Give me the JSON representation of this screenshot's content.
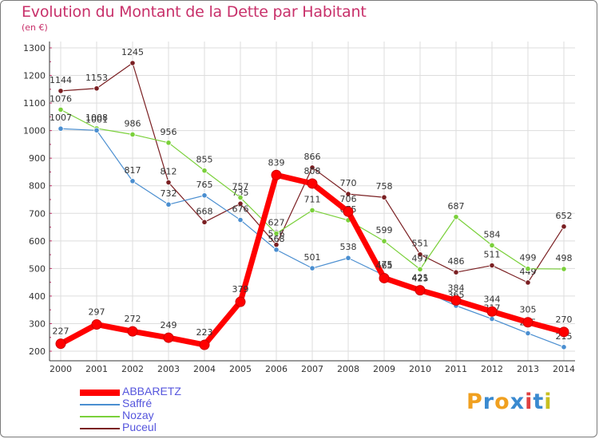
{
  "header": {
    "title": "Evolution du Montant de la Dette par Habitant",
    "unit": "(en €)"
  },
  "brand": {
    "text": "Proxiti",
    "letter_colors": [
      "#f0a020",
      "#3a8ad0",
      "#f0a020",
      "#3a8ad0",
      "#e04040",
      "#3a8ad0",
      "#c8c020"
    ]
  },
  "chart_data": {
    "type": "line",
    "title": "Evolution du Montant de la Dette par Habitant",
    "ylabel": "(en €)",
    "xlabel": "",
    "x": [
      "2000",
      "2001",
      "2002",
      "2003",
      "2004",
      "2005",
      "2006",
      "2007",
      "2008",
      "2009",
      "2010",
      "2011",
      "2012",
      "2013",
      "2014"
    ],
    "ylim": [
      200,
      1300
    ],
    "yticks": [
      "200",
      "300",
      "400",
      "500",
      "600",
      "700",
      "800",
      "900",
      "1000",
      "1100",
      "1200",
      "1300"
    ],
    "grid": true,
    "legend_position": "bottom-left",
    "series": [
      {
        "name": "Puceul",
        "color": "#7a1f22",
        "values": [
          1144,
          1153,
          1245,
          812,
          668,
          735,
          586,
          866,
          770,
          758,
          551,
          486,
          511,
          449,
          652
        ],
        "labels": [
          "1144",
          "1153",
          "1245",
          "812",
          "668",
          "735",
          "586",
          "866",
          "770",
          "758",
          "551",
          "486",
          "511",
          "449",
          "652"
        ]
      },
      {
        "name": "Nozay",
        "color": "#7ad03a",
        "values": [
          1076,
          1008,
          986,
          956,
          855,
          757,
          627,
          711,
          675,
          599,
          497,
          687,
          584,
          499,
          498
        ],
        "labels": [
          "1076",
          "1008",
          "986",
          "956",
          "855",
          "757",
          "627",
          "711",
          "675",
          "599",
          "497",
          "687",
          "584",
          "499",
          "498"
        ]
      },
      {
        "name": "Saffré",
        "color": "#4a8ed0",
        "values": [
          1007,
          1001,
          817,
          732,
          765,
          676,
          568,
          501,
          538,
          475,
          425,
          365,
          317,
          265,
          215
        ],
        "labels": [
          "1007",
          "1001",
          "817",
          "732",
          "765",
          "676",
          "568",
          "501",
          "538",
          "475",
          "425",
          "365",
          "317",
          "265",
          "215"
        ]
      },
      {
        "name": "ABBARETZ",
        "color": "#ff0000",
        "values": [
          227,
          297,
          272,
          249,
          223,
          379,
          839,
          808,
          706,
          465,
          421,
          384,
          344,
          305,
          270
        ],
        "labels": [
          "227",
          "297",
          "272",
          "249",
          "223",
          "379",
          "839",
          "808",
          "706",
          "465",
          "421",
          "384",
          "344",
          "305",
          "270"
        ]
      }
    ]
  },
  "legend": {
    "items": [
      {
        "label": "ABBARETZ",
        "color": "#ff0000",
        "text_color": "#5555dd",
        "thick": true
      },
      {
        "label": "Saffré",
        "color": "#4a8ed0",
        "text_color": "#5555dd",
        "thick": false
      },
      {
        "label": "Nozay",
        "color": "#7ad03a",
        "text_color": "#5555dd",
        "thick": false
      },
      {
        "label": "Puceul",
        "color": "#7a1f22",
        "text_color": "#5555dd",
        "thick": false
      }
    ]
  }
}
